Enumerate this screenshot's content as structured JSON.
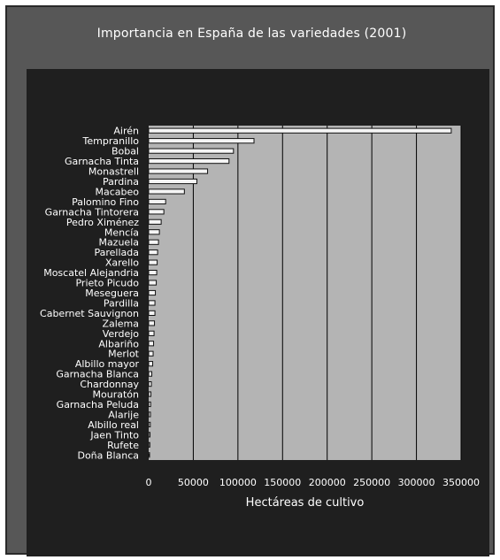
{
  "chart_data": {
    "type": "bar",
    "orientation": "horizontal",
    "title": "Importancia en España de las variedades (2001)",
    "xlabel": "Hectáreas de cultivo",
    "ylabel": "",
    "xlim": [
      0,
      350000
    ],
    "x_ticks": [
      "0",
      "50000",
      "100000",
      "150000",
      "200000",
      "250000",
      "300000",
      "350000"
    ],
    "grid": true,
    "categories": [
      "Airén",
      "Tempranillo",
      "Bobal",
      "Garnacha Tinta",
      "Monastrell",
      "Pardina",
      "Macabeo",
      "Palomino Fino",
      "Garnacha Tintorera",
      "Pedro Ximénez",
      "Mencía",
      "Mazuela",
      "Parellada",
      "Xarello",
      "Moscatel Alejandria",
      "Prieto Picudo",
      "Meseguera",
      "Pardilla",
      "Cabernet Sauvignon",
      "Zalema",
      "Verdejo",
      "Albariño",
      "Merlot",
      "Albillo mayor",
      "Garnacha Blanca",
      "Chardonnay",
      "Mouratón",
      "Garnacha Peluda",
      "Alarije",
      "Albillo real",
      "Jaen Tinto",
      "Rufete",
      "Doña Blanca"
    ],
    "values": [
      339000,
      118000,
      95000,
      90000,
      66000,
      54000,
      40000,
      19000,
      17000,
      14000,
      12000,
      11000,
      10000,
      9500,
      9000,
      8500,
      7500,
      7000,
      7000,
      6500,
      6000,
      5500,
      5000,
      4500,
      3500,
      3000,
      2500,
      2200,
      2000,
      1800,
      1500,
      1300,
      1000
    ]
  },
  "colors": {
    "frame": "#575757",
    "inner_background": "#1f1f1f",
    "plot_background": "#b4b4b4",
    "bar_fill": "#f5f5f5",
    "bar_edge": "#111111",
    "gridline": "#000000",
    "text": "#ffffff"
  }
}
